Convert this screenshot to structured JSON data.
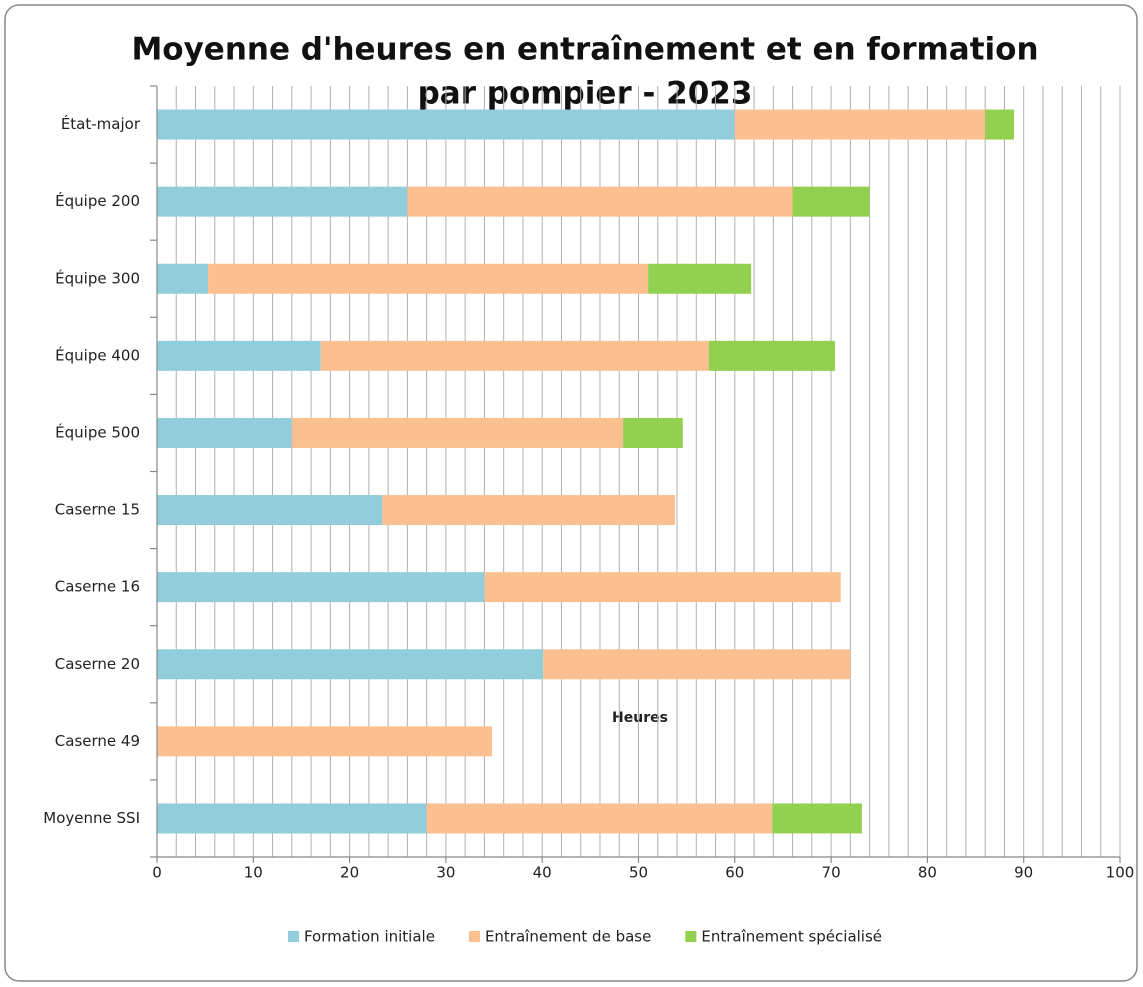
{
  "chart_data": {
    "type": "stacked_barh",
    "title": [
      "Moyenne d'heures en entraînement et en formation",
      "par pompier - 2023"
    ],
    "xlabel": "Heures",
    "categories": [
      "État-major",
      "Équipe 200",
      "Équipe 300",
      "Équipe 400",
      "Équipe 500",
      "Caserne 15",
      "Caserne 16",
      "Caserne 20",
      "Caserne 49",
      "Moyenne SSI"
    ],
    "series": [
      {
        "name": "Formation initiale",
        "color": "#92cddc",
        "values": [
          60,
          26,
          5.3,
          17,
          14,
          23.4,
          34,
          40.1,
          0,
          28
        ]
      },
      {
        "name": "Entraînement de base",
        "color": "#fac090",
        "values": [
          26,
          40,
          45.7,
          40.3,
          34.4,
          30.4,
          37,
          31.9,
          34.8,
          35.9
        ]
      },
      {
        "name": "Entraînement spécialisé",
        "color": "#92d050",
        "values": [
          3,
          8,
          10.7,
          13.1,
          6.2,
          0,
          0,
          0,
          0,
          9.3
        ]
      }
    ],
    "xlim": [
      0,
      100
    ],
    "xticks": [
      0,
      10,
      20,
      30,
      40,
      50,
      60,
      70,
      80,
      90,
      100
    ],
    "grid": true,
    "legend": "bottom"
  }
}
